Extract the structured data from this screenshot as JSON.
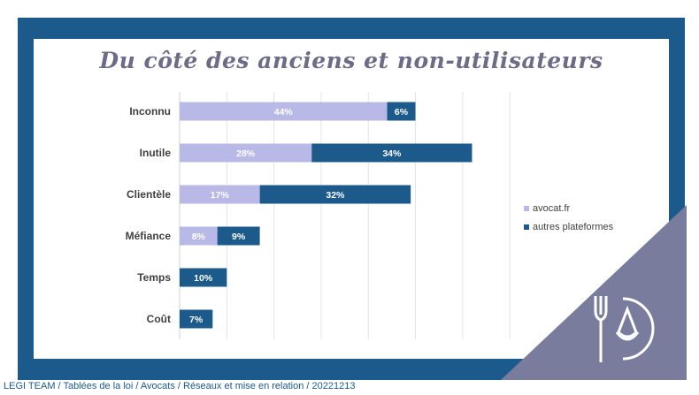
{
  "chart_data": {
    "type": "bar",
    "orientation": "horizontal",
    "stacked": true,
    "title": "Du côté des anciens et non-utilisateurs",
    "categories": [
      "Inconnu",
      "Inutile",
      "Clientèle",
      "Méfiance",
      "Temps",
      "Coût"
    ],
    "series": [
      {
        "name": "avocat.fr",
        "values": [
          44,
          28,
          17,
          8,
          0,
          0
        ],
        "labels": [
          "44%",
          "28%",
          "17%",
          "8%",
          "",
          ""
        ],
        "color": "#b9b9e8"
      },
      {
        "name": "autres plateformes",
        "values": [
          6,
          34,
          32,
          9,
          10,
          7
        ],
        "labels": [
          "6%",
          "34%",
          "32%",
          "9%",
          "10%",
          "7%"
        ],
        "color": "#1c5a8c"
      }
    ],
    "xlim": [
      0,
      70
    ],
    "grid": true,
    "legend_position": "right"
  },
  "colors": {
    "frame": "#1c5a8c",
    "title": "#6d6b86",
    "corner": "#7a7c9e",
    "grid": "#e3e3e3"
  },
  "logo": {
    "icon": "fork-knife-scales-logo-icon"
  },
  "footer": {
    "text": "LEGI TEAM / Tablées de la loi / Avocats / Réseaux et mise en relation /  20221213"
  }
}
